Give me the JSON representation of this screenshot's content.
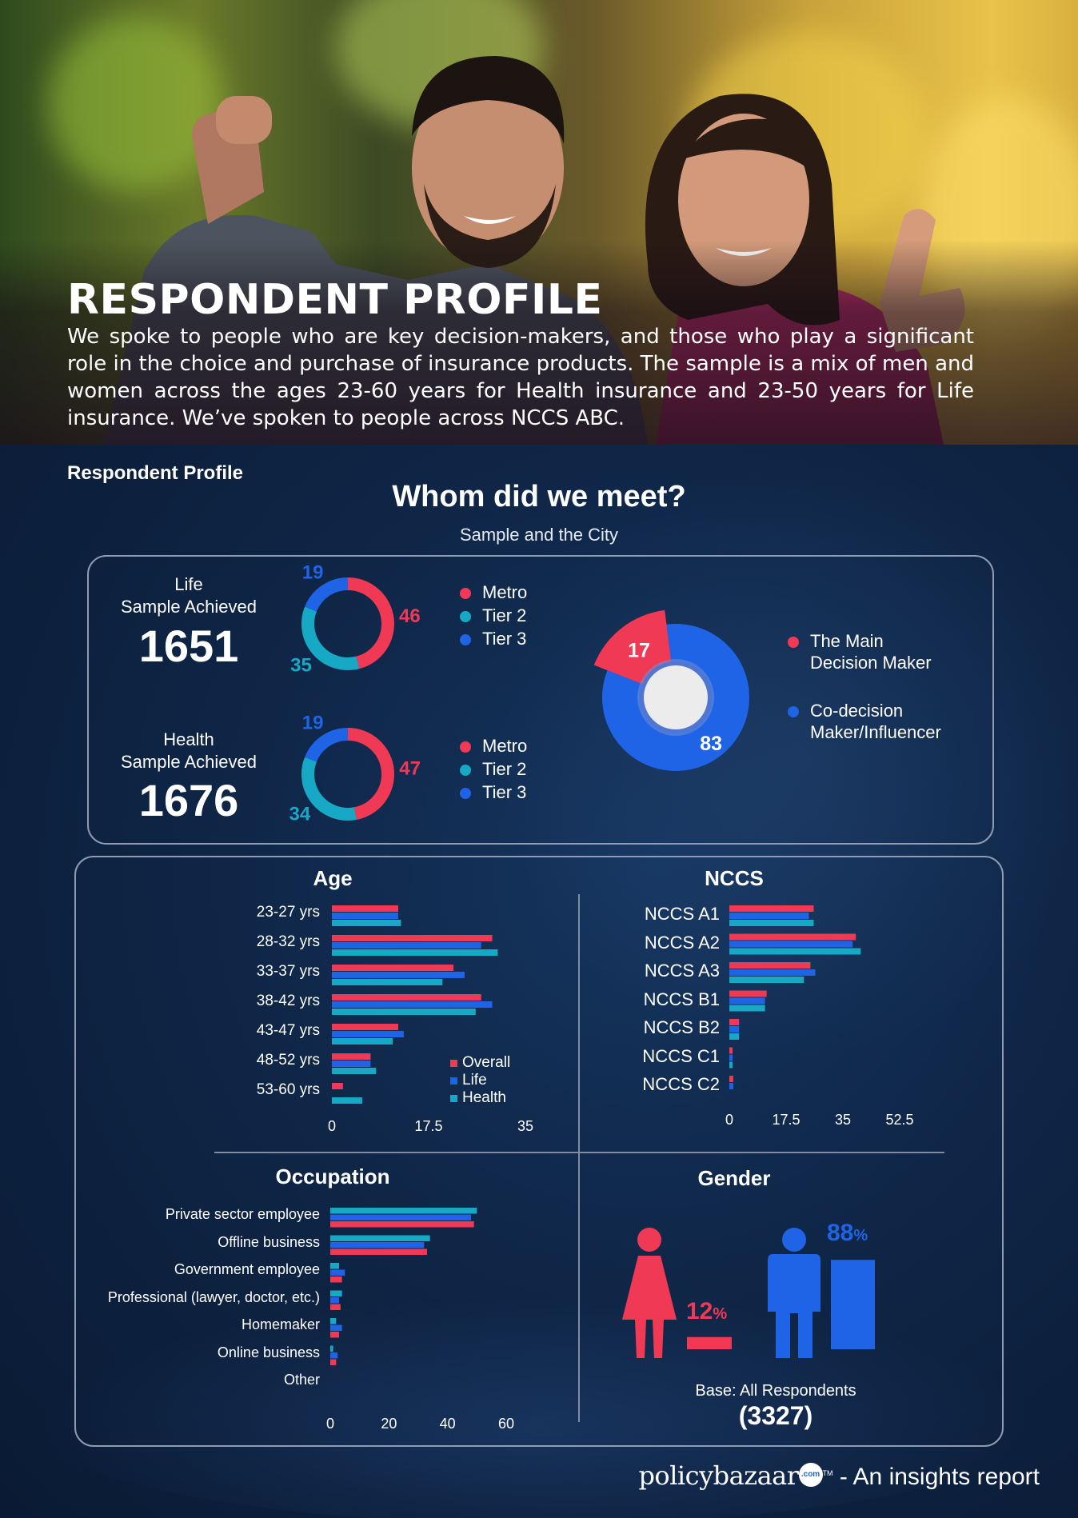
{
  "hero": {
    "title": "RESPONDENT PROFILE",
    "text": "We spoke to people who are key decision-makers, and those who play a significant role in the choice and purchase of insurance products. The sample is a mix of men and women across the ages 23-60 years for Health insurance and 23-50 years for Life insurance.  We’ve spoken to people across NCCS ABC."
  },
  "section_label": "Respondent Profile",
  "main_title": "Whom did we meet?",
  "sub_title": "Sample and the City",
  "colors": {
    "metro": "#f03a55",
    "tier2": "#17a8c6",
    "tier3": "#1f63e6",
    "background": "#0d1e3a"
  },
  "life": {
    "label1": "Life",
    "label2": "Sample Achieved",
    "count": "1651"
  },
  "health": {
    "label1": "Health",
    "label2": "Sample Achieved",
    "count": "1676"
  },
  "city_legend": [
    "Metro",
    "Tier 2",
    "Tier 3"
  ],
  "decision_legend": {
    "main_line1": "The Main",
    "main_line2": "Decision Maker",
    "co_line1": "Co-decision",
    "co_line2": "Maker/Influencer"
  },
  "age_legend": [
    "Overall",
    "Life",
    "Health"
  ],
  "gender": {
    "female_label": "12",
    "male_label": "88",
    "pct_sign": "%",
    "base_text": "Base: All Respondents",
    "base_count": "(3327)"
  },
  "footer": {
    "brand": "policybazaar",
    "brand_badge": ".com",
    "tm": "TM",
    "tagline": "- An insights report"
  },
  "chart_data": [
    {
      "type": "pie",
      "donut": true,
      "title": "",
      "categories": [
        "Metro",
        "Tier 2",
        "Tier 3"
      ],
      "values": [
        46,
        35,
        19
      ],
      "colors": [
        "#f03a55",
        "#17a8c6",
        "#1f63e6"
      ]
    },
    {
      "type": "pie",
      "donut": true,
      "title": "",
      "categories": [
        "Metro",
        "Tier 2",
        "Tier 3"
      ],
      "values": [
        47,
        34,
        19
      ],
      "colors": [
        "#f03a55",
        "#17a8c6",
        "#1f63e6"
      ]
    },
    {
      "type": "pie",
      "donut": true,
      "title": "",
      "categories": [
        "The Main Decision Maker",
        "Co-decision Maker/Influencer"
      ],
      "values": [
        17,
        83
      ],
      "colors": [
        "#f03a55",
        "#1f63e6"
      ]
    },
    {
      "type": "bar",
      "orientation": "horizontal",
      "title": "Age",
      "categories": [
        "23-27 yrs",
        "28-32 yrs",
        "33-37 yrs",
        "38-42 yrs",
        "43-47 yrs",
        "48-52 yrs",
        "53-60 yrs"
      ],
      "series": [
        {
          "name": "Overall",
          "color": "#f03a55",
          "values": [
            12,
            29,
            22,
            27,
            12,
            7,
            2
          ]
        },
        {
          "name": "Life",
          "color": "#1f63e6",
          "values": [
            12,
            27,
            24,
            29,
            13,
            7,
            0
          ]
        },
        {
          "name": "Health",
          "color": "#17a8c6",
          "values": [
            12.5,
            30,
            20,
            26,
            11,
            8,
            5.5
          ]
        }
      ],
      "xticks": [
        "0",
        "17.5",
        "35"
      ],
      "xlim": [
        0,
        35
      ],
      "legend": "bottom-right"
    },
    {
      "type": "bar",
      "orientation": "horizontal",
      "title": "NCCS",
      "categories": [
        "NCCS A1",
        "NCCS A2",
        "NCCS A3",
        "NCCS B1",
        "NCCS B2",
        "NCCS C1",
        "NCCS C2"
      ],
      "series": [
        {
          "name": "Overall",
          "color": "#f03a55",
          "values": [
            26,
            39,
            25,
            11.5,
            3,
            1,
            1.2
          ]
        },
        {
          "name": "Life",
          "color": "#1f63e6",
          "values": [
            24.5,
            38,
            26.5,
            11,
            3,
            1,
            1.2
          ]
        },
        {
          "name": "Health",
          "color": "#17a8c6",
          "values": [
            26,
            40.5,
            23,
            11,
            3,
            1,
            0
          ]
        }
      ],
      "xticks": [
        "0",
        "17.5",
        "35",
        "52.5"
      ],
      "xlim": [
        0,
        52.5
      ]
    },
    {
      "type": "bar",
      "orientation": "horizontal",
      "title": "Occupation",
      "categories": [
        "Private sector employee",
        "Offline business",
        "Government employee",
        "Professional (lawyer, doctor, etc.)",
        "Homemaker",
        "Online business",
        "Other"
      ],
      "series": [
        {
          "name": "Health",
          "color": "#17a8c6",
          "values": [
            50,
            34,
            3,
            4,
            2,
            1,
            0
          ]
        },
        {
          "name": "Life",
          "color": "#1f63e6",
          "values": [
            48,
            32,
            5,
            3,
            4,
            2.5,
            0
          ]
        },
        {
          "name": "Overall",
          "color": "#f03a55",
          "values": [
            49,
            33,
            4,
            3.5,
            3,
            2,
            0
          ]
        }
      ],
      "xticks": [
        "0",
        "20",
        "40",
        "60"
      ],
      "xlim": [
        0,
        60
      ]
    },
    {
      "type": "bar",
      "title": "Gender",
      "categories": [
        "Female",
        "Male"
      ],
      "values": [
        12,
        88
      ],
      "colors": [
        "#f03a55",
        "#1f63e6"
      ]
    }
  ]
}
